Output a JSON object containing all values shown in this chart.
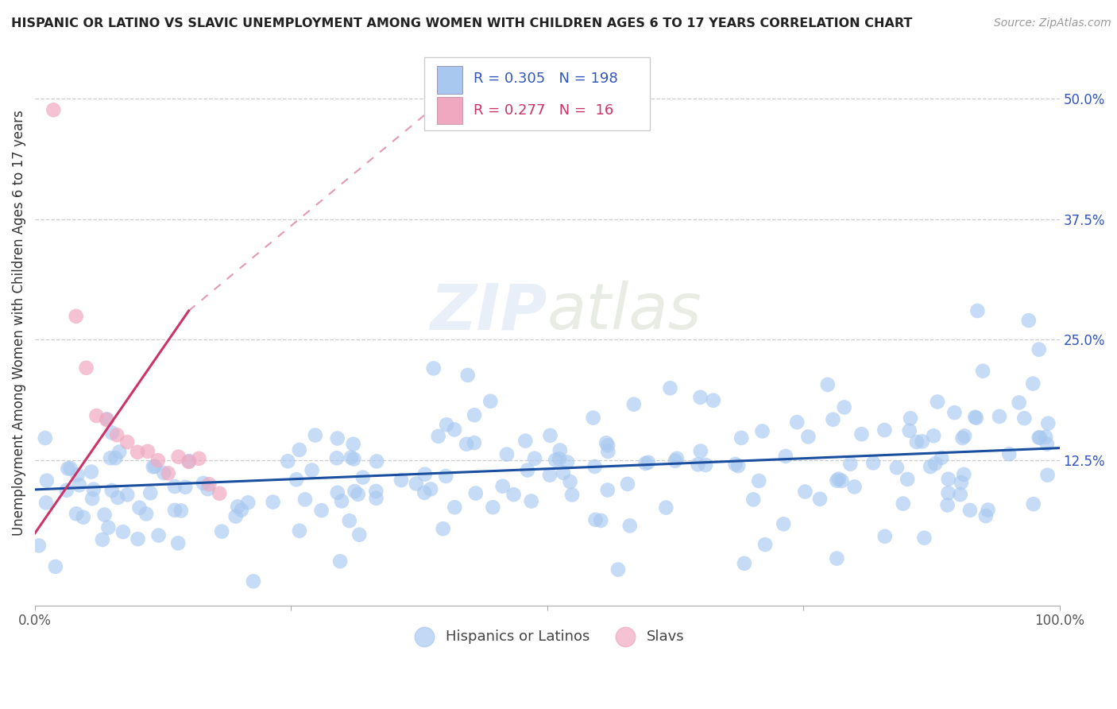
{
  "title": "HISPANIC OR LATINO VS SLAVIC UNEMPLOYMENT AMONG WOMEN WITH CHILDREN AGES 6 TO 17 YEARS CORRELATION CHART",
  "source": "Source: ZipAtlas.com",
  "ylabel": "Unemployment Among Women with Children Ages 6 to 17 years",
  "xlim": [
    0,
    1.0
  ],
  "ylim": [
    -0.025,
    0.56
  ],
  "blue_color": "#a8c8f0",
  "pink_color": "#f0a8c0",
  "blue_line_color": "#1a4fa0",
  "pink_line_color": "#cc3366",
  "legend_R1": "0.305",
  "legend_N1": "198",
  "legend_R2": "0.277",
  "legend_N2": "16",
  "watermark": "ZIPatlas",
  "blue_trend_start_x": 0.0,
  "blue_trend_start_y": 0.095,
  "blue_trend_end_x": 1.0,
  "blue_trend_end_y": 0.138,
  "pink_trend_solid_start_x": 0.0,
  "pink_trend_solid_start_y": 0.05,
  "pink_trend_solid_end_x": 0.15,
  "pink_trend_solid_end_y": 0.28,
  "pink_trend_dash_end_x": 0.4,
  "pink_trend_dash_end_y": 0.5,
  "ytick_vals": [
    0.125,
    0.25,
    0.375,
    0.5
  ],
  "ytick_labels": [
    "12.5%",
    "25.0%",
    "37.5%",
    "50.0%"
  ]
}
